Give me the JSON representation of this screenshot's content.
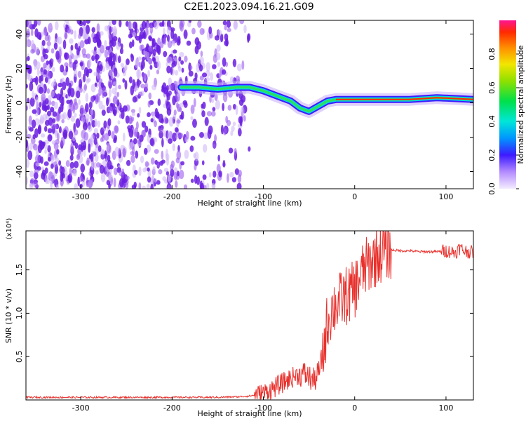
{
  "title": "C2E1.2023.094.16.21.G09",
  "chart_data": [
    {
      "type": "heatmap",
      "xlabel": "Height of straight line (km)",
      "ylabel": "Frequency (Hz)",
      "xlim": [
        -360,
        130
      ],
      "ylim": [
        -50,
        48
      ],
      "x_ticks": [
        -300,
        -200,
        -100,
        0,
        100
      ],
      "y_ticks": [
        -40,
        -20,
        0,
        20,
        40
      ],
      "colorbar": {
        "label": "Normalized spectral amplitude",
        "range": [
          0.0,
          1.0
        ],
        "ticks": [
          0.0,
          0.2,
          0.4,
          0.6,
          0.8
        ]
      },
      "ridge": {
        "x": [
          -190,
          -170,
          -150,
          -130,
          -115,
          -100,
          -85,
          -70,
          -60,
          -50,
          -40,
          -30,
          -20,
          0,
          20,
          60,
          90,
          130
        ],
        "y": [
          9,
          9,
          8,
          9,
          9,
          7,
          4,
          1,
          -3,
          -5,
          -2,
          1,
          2,
          2,
          2,
          2,
          3,
          2
        ]
      },
      "noise_region_x": [
        -360,
        -115
      ]
    },
    {
      "type": "line",
      "xlabel": "Height of straight line (km)",
      "ylabel": "SNR (10 * v/v)",
      "y_multiplier": "(x10⁴)",
      "xlim": [
        -360,
        130
      ],
      "ylim": [
        0,
        1.95
      ],
      "x_ticks": [
        -300,
        -200,
        -100,
        0,
        100
      ],
      "y_ticks": [
        0.5,
        1.0,
        1.5
      ],
      "y_tick_labels": [
        "0.5",
        "1.0",
        "1.5"
      ],
      "series": [
        {
          "color": "#e8312d",
          "x": [
            -360,
            -250,
            -150,
            -120,
            -105,
            -95,
            -85,
            -75,
            -65,
            -55,
            -45,
            -40,
            -35,
            -30,
            -25,
            -20,
            -15,
            -10,
            -5,
            0,
            5,
            10,
            20,
            30,
            40,
            50,
            60,
            70,
            80,
            90,
            100,
            110,
            115,
            120,
            130
          ],
          "y": [
            0.03,
            0.03,
            0.03,
            0.04,
            0.06,
            0.1,
            0.16,
            0.22,
            0.28,
            0.3,
            0.22,
            0.3,
            0.5,
            0.9,
            1.05,
            1.1,
            1.15,
            1.2,
            1.22,
            1.28,
            1.4,
            1.5,
            1.62,
            1.7,
            1.73,
            1.72,
            1.72,
            1.71,
            1.71,
            1.71,
            1.72,
            1.7,
            1.75,
            1.72,
            1.7
          ]
        }
      ]
    }
  ]
}
